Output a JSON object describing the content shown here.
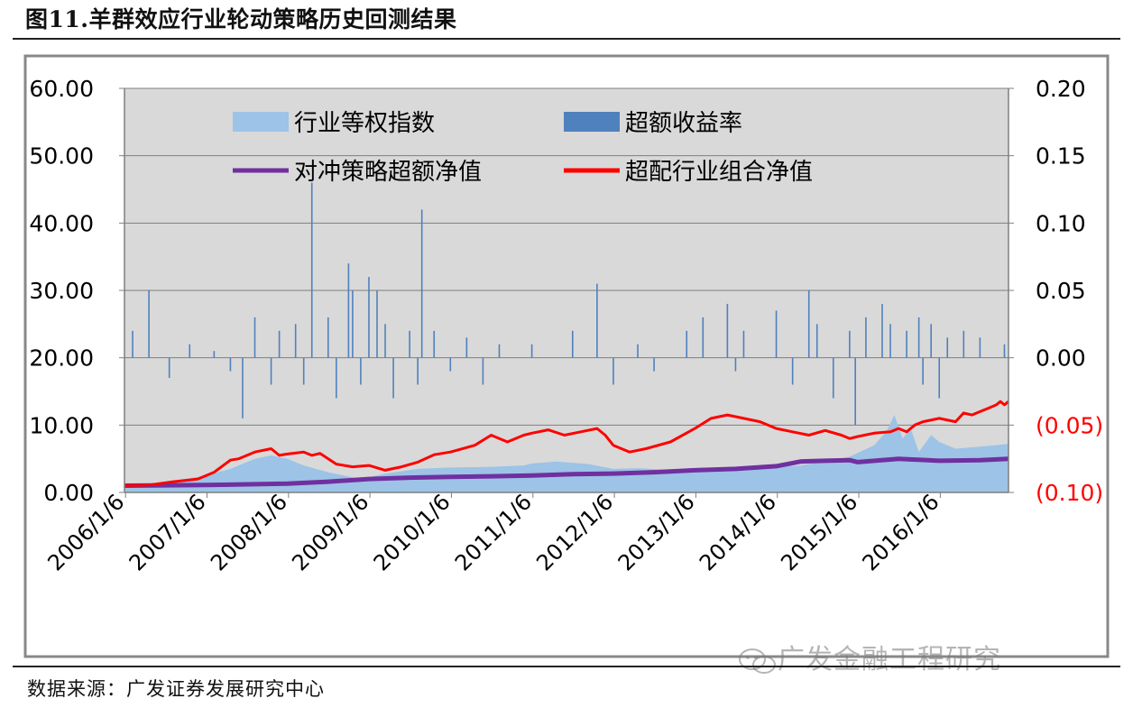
{
  "title": "图11.羊群效应行业轮动策略历史回测结果",
  "footer": "数据来源：广发证券发展研究中心",
  "watermark": "广发金融工程研究",
  "colors": {
    "plot_bg": "#d9d9d9",
    "industry_index": "#9dc3e6",
    "excess_return": "#4f81bd",
    "hedge_nav": "#7030a0",
    "overweight_nav": "#ff0000",
    "right_axis_negative": "#ff0000"
  },
  "chart_data": {
    "type": "line",
    "x_ticks": [
      "2006/1/6",
      "2007/1/6",
      "2008/1/6",
      "2009/1/6",
      "2010/1/6",
      "2011/1/6",
      "2012/1/6",
      "2013/1/6",
      "2014/1/6",
      "2015/1/6",
      "2016/1/6"
    ],
    "x_range": [
      2006.0,
      2016.85
    ],
    "y_left": {
      "range": [
        0,
        60
      ],
      "ticks": [
        "0.00",
        "10.00",
        "20.00",
        "30.00",
        "40.00",
        "50.00",
        "60.00"
      ]
    },
    "y_right": {
      "range": [
        -0.1,
        0.2
      ],
      "ticks": [
        "(0.10)",
        "(0.05)",
        "0.00",
        "0.05",
        "0.10",
        "0.15",
        "0.20"
      ]
    },
    "legend": {
      "placement": "top-left"
    },
    "grid": "horizontal",
    "series": [
      {
        "name": "行业等权指数",
        "kind": "area",
        "axis": "left",
        "points": [
          [
            2006.0,
            1
          ],
          [
            2006.5,
            1.5
          ],
          [
            2007.0,
            2.5
          ],
          [
            2007.3,
            3.5
          ],
          [
            2007.6,
            5
          ],
          [
            2007.8,
            5.5
          ],
          [
            2008.0,
            5
          ],
          [
            2008.2,
            4
          ],
          [
            2008.5,
            3
          ],
          [
            2008.9,
            2
          ],
          [
            2009.2,
            2.8
          ],
          [
            2009.6,
            3.5
          ],
          [
            2010.0,
            3.7
          ],
          [
            2010.5,
            3.8
          ],
          [
            2010.9,
            4
          ],
          [
            2011.0,
            4.3
          ],
          [
            2011.3,
            4.6
          ],
          [
            2011.7,
            4.2
          ],
          [
            2012.0,
            3.5
          ],
          [
            2012.3,
            3.6
          ],
          [
            2012.9,
            3.2
          ],
          [
            2013.3,
            3.5
          ],
          [
            2013.8,
            3.7
          ],
          [
            2014.3,
            4
          ],
          [
            2014.9,
            5.3
          ],
          [
            2015.2,
            7
          ],
          [
            2015.35,
            9
          ],
          [
            2015.45,
            11.5
          ],
          [
            2015.55,
            8
          ],
          [
            2015.65,
            9.5
          ],
          [
            2015.75,
            6
          ],
          [
            2015.9,
            8.5
          ],
          [
            2016.0,
            7.5
          ],
          [
            2016.2,
            6.5
          ],
          [
            2016.5,
            6.8
          ],
          [
            2016.85,
            7.2
          ]
        ]
      },
      {
        "name": "超额收益率",
        "kind": "bars",
        "axis": "right",
        "points": [
          [
            2006.1,
            0.02
          ],
          [
            2006.3,
            0.05
          ],
          [
            2006.55,
            -0.015
          ],
          [
            2006.8,
            0.01
          ],
          [
            2007.1,
            0.005
          ],
          [
            2007.3,
            -0.01
          ],
          [
            2007.45,
            -0.045
          ],
          [
            2007.6,
            0.03
          ],
          [
            2007.8,
            -0.02
          ],
          [
            2007.9,
            0.02
          ],
          [
            2008.1,
            0.025
          ],
          [
            2008.2,
            -0.02
          ],
          [
            2008.3,
            0.13
          ],
          [
            2008.5,
            0.03
          ],
          [
            2008.6,
            -0.03
          ],
          [
            2008.75,
            0.07
          ],
          [
            2008.8,
            0.05
          ],
          [
            2008.9,
            -0.02
          ],
          [
            2009.0,
            0.06
          ],
          [
            2009.1,
            0.05
          ],
          [
            2009.2,
            0.025
          ],
          [
            2009.3,
            -0.03
          ],
          [
            2009.5,
            0.02
          ],
          [
            2009.6,
            -0.02
          ],
          [
            2009.65,
            0.11
          ],
          [
            2009.8,
            0.02
          ],
          [
            2010.0,
            -0.01
          ],
          [
            2010.2,
            0.015
          ],
          [
            2010.4,
            -0.02
          ],
          [
            2010.6,
            0.01
          ],
          [
            2011.0,
            0.01
          ],
          [
            2011.5,
            0.02
          ],
          [
            2011.8,
            0.055
          ],
          [
            2012.0,
            -0.02
          ],
          [
            2012.3,
            0.01
          ],
          [
            2012.5,
            -0.01
          ],
          [
            2012.9,
            0.02
          ],
          [
            2013.1,
            0.03
          ],
          [
            2013.4,
            0.04
          ],
          [
            2013.5,
            -0.01
          ],
          [
            2013.6,
            0.02
          ],
          [
            2014.0,
            0.035
          ],
          [
            2014.2,
            -0.02
          ],
          [
            2014.4,
            0.05
          ],
          [
            2014.5,
            0.025
          ],
          [
            2014.7,
            -0.03
          ],
          [
            2014.9,
            0.02
          ],
          [
            2014.97,
            -0.05
          ],
          [
            2015.1,
            0.03
          ],
          [
            2015.3,
            0.04
          ],
          [
            2015.4,
            0.025
          ],
          [
            2015.6,
            0.02
          ],
          [
            2015.75,
            0.03
          ],
          [
            2015.8,
            -0.02
          ],
          [
            2015.9,
            0.025
          ],
          [
            2016.0,
            -0.03
          ],
          [
            2016.1,
            0.015
          ],
          [
            2016.3,
            0.02
          ],
          [
            2016.5,
            0.015
          ],
          [
            2016.8,
            0.01
          ]
        ]
      },
      {
        "name": "对冲策略超额净值",
        "kind": "line",
        "axis": "left",
        "points": [
          [
            2006.0,
            1
          ],
          [
            2007.0,
            1.1
          ],
          [
            2008.0,
            1.3
          ],
          [
            2008.5,
            1.6
          ],
          [
            2009.0,
            2
          ],
          [
            2009.5,
            2.2
          ],
          [
            2010.0,
            2.3
          ],
          [
            2010.5,
            2.4
          ],
          [
            2011.0,
            2.5
          ],
          [
            2011.5,
            2.7
          ],
          [
            2012.0,
            2.8
          ],
          [
            2012.5,
            3
          ],
          [
            2013.0,
            3.3
          ],
          [
            2013.5,
            3.5
          ],
          [
            2014.0,
            3.9
          ],
          [
            2014.3,
            4.6
          ],
          [
            2014.6,
            4.7
          ],
          [
            2014.9,
            4.8
          ],
          [
            2015.0,
            4.5
          ],
          [
            2015.5,
            5
          ],
          [
            2016.0,
            4.7
          ],
          [
            2016.5,
            4.8
          ],
          [
            2016.85,
            5
          ]
        ]
      },
      {
        "name": "超配行业组合净值",
        "kind": "line",
        "axis": "left",
        "points": [
          [
            2006.0,
            1
          ],
          [
            2006.3,
            1.1
          ],
          [
            2006.6,
            1.6
          ],
          [
            2006.9,
            2
          ],
          [
            2007.1,
            3
          ],
          [
            2007.3,
            4.8
          ],
          [
            2007.4,
            5
          ],
          [
            2007.6,
            6
          ],
          [
            2007.8,
            6.5
          ],
          [
            2007.9,
            5.5
          ],
          [
            2008.0,
            5.7
          ],
          [
            2008.2,
            6
          ],
          [
            2008.3,
            5.5
          ],
          [
            2008.4,
            5.8
          ],
          [
            2008.6,
            4.2
          ],
          [
            2008.8,
            3.8
          ],
          [
            2009.0,
            4
          ],
          [
            2009.2,
            3.3
          ],
          [
            2009.4,
            3.8
          ],
          [
            2009.6,
            4.5
          ],
          [
            2009.8,
            5.6
          ],
          [
            2010.0,
            6
          ],
          [
            2010.3,
            7
          ],
          [
            2010.5,
            8.5
          ],
          [
            2010.7,
            7.5
          ],
          [
            2010.9,
            8.5
          ],
          [
            2011.0,
            8.8
          ],
          [
            2011.2,
            9.3
          ],
          [
            2011.4,
            8.5
          ],
          [
            2011.6,
            9
          ],
          [
            2011.8,
            9.5
          ],
          [
            2011.9,
            8.5
          ],
          [
            2012.0,
            7
          ],
          [
            2012.2,
            6
          ],
          [
            2012.4,
            6.5
          ],
          [
            2012.7,
            7.5
          ],
          [
            2013.0,
            9.5
          ],
          [
            2013.2,
            11
          ],
          [
            2013.4,
            11.5
          ],
          [
            2013.6,
            11
          ],
          [
            2013.8,
            10.5
          ],
          [
            2014.0,
            9.5
          ],
          [
            2014.2,
            9
          ],
          [
            2014.4,
            8.5
          ],
          [
            2014.6,
            9.2
          ],
          [
            2014.8,
            8.5
          ],
          [
            2014.9,
            8
          ],
          [
            2015.0,
            8.3
          ],
          [
            2015.2,
            8.8
          ],
          [
            2015.4,
            9
          ],
          [
            2015.5,
            9.5
          ],
          [
            2015.6,
            9
          ],
          [
            2015.7,
            10
          ],
          [
            2015.8,
            10.5
          ],
          [
            2016.0,
            11
          ],
          [
            2016.2,
            10.5
          ],
          [
            2016.3,
            11.8
          ],
          [
            2016.4,
            11.5
          ],
          [
            2016.5,
            12
          ],
          [
            2016.6,
            12.5
          ],
          [
            2016.7,
            13
          ],
          [
            2016.75,
            13.5
          ],
          [
            2016.8,
            13
          ],
          [
            2016.85,
            13.5
          ]
        ]
      }
    ]
  }
}
